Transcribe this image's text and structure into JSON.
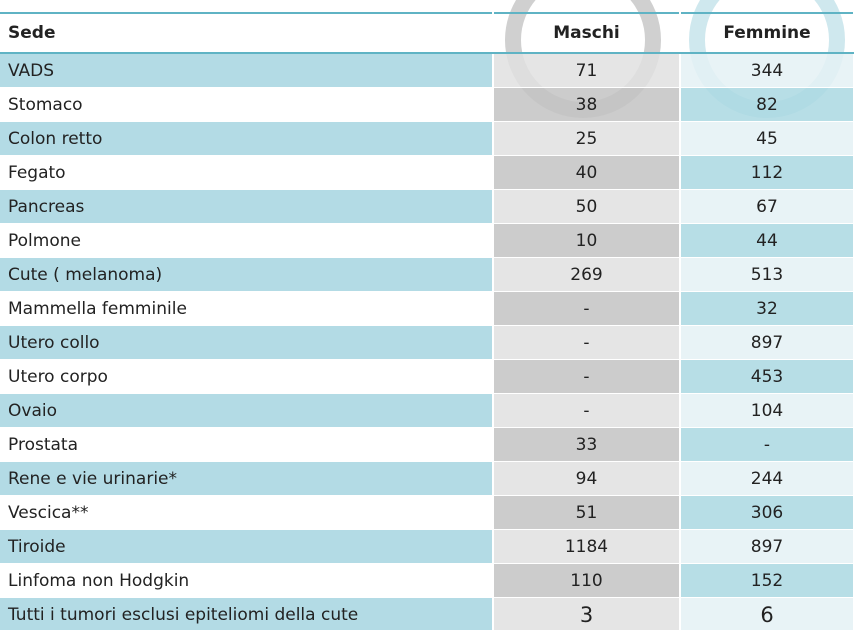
{
  "table": {
    "header": [
      "Sede",
      "Maschi",
      "Femmine"
    ],
    "rows": [
      [
        "VADS",
        "71",
        "344"
      ],
      [
        "Stomaco",
        "38",
        "82"
      ],
      [
        "Colon retto",
        "25",
        "45"
      ],
      [
        "Fegato",
        "40",
        "112"
      ],
      [
        "Pancreas",
        "50",
        "67"
      ],
      [
        "Polmone",
        "10",
        "44"
      ],
      [
        "Cute ( melanoma)",
        "269",
        "513"
      ],
      [
        "Mammella femminile",
        "-",
        "32"
      ],
      [
        "Utero collo",
        "-",
        "897"
      ],
      [
        "Utero corpo",
        "-",
        "453"
      ],
      [
        "Ovaio",
        "-",
        "104"
      ],
      [
        "Prostata",
        "33",
        "-"
      ],
      [
        "Rene e vie urinarie*",
        "94",
        "244"
      ],
      [
        "Vescica**",
        "51",
        "306"
      ],
      [
        "Tiroide",
        "1184",
        "897"
      ],
      [
        "Linfoma non Hodgkin",
        "110",
        "152"
      ],
      [
        "Tutti i tumori esclusi epiteliomi della cute",
        "3",
        "6"
      ]
    ]
  }
}
